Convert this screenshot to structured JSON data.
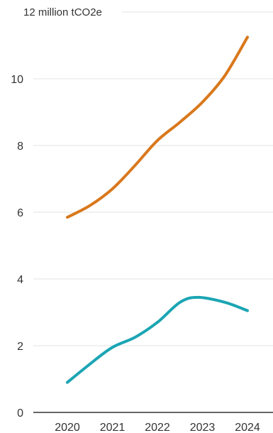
{
  "chart_data": {
    "type": "line",
    "title": "",
    "xlabel": "",
    "ylabel": "",
    "y_unit_label": "12 million tCO2e",
    "x": [
      2020,
      2021,
      2022,
      2023,
      2024
    ],
    "x_tick_labels": [
      "2020",
      "2021",
      "2022",
      "2023",
      "2024"
    ],
    "ylim": [
      0,
      12
    ],
    "y_ticks": [
      0,
      2,
      4,
      6,
      8,
      10,
      12
    ],
    "y_tick_labels": [
      "0",
      "2",
      "4",
      "6",
      "8",
      "10",
      ""
    ],
    "grid": true,
    "legend": "none",
    "series": [
      {
        "color": "#d9781c",
        "points": [
          [
            2020,
            5.85
          ],
          [
            2020.5,
            6.2
          ],
          [
            2021,
            6.7
          ],
          [
            2021.5,
            7.4
          ],
          [
            2022,
            8.15
          ],
          [
            2022.5,
            8.7
          ],
          [
            2023,
            9.3
          ],
          [
            2023.5,
            10.1
          ],
          [
            2024,
            11.25
          ]
        ]
      },
      {
        "color": "#1ba5b4",
        "points": [
          [
            2020,
            0.9
          ],
          [
            2020.5,
            1.45
          ],
          [
            2021,
            1.95
          ],
          [
            2021.5,
            2.25
          ],
          [
            2022,
            2.7
          ],
          [
            2022.5,
            3.3
          ],
          [
            2022.9,
            3.45
          ],
          [
            2023.5,
            3.3
          ],
          [
            2024,
            3.05
          ]
        ]
      }
    ]
  }
}
